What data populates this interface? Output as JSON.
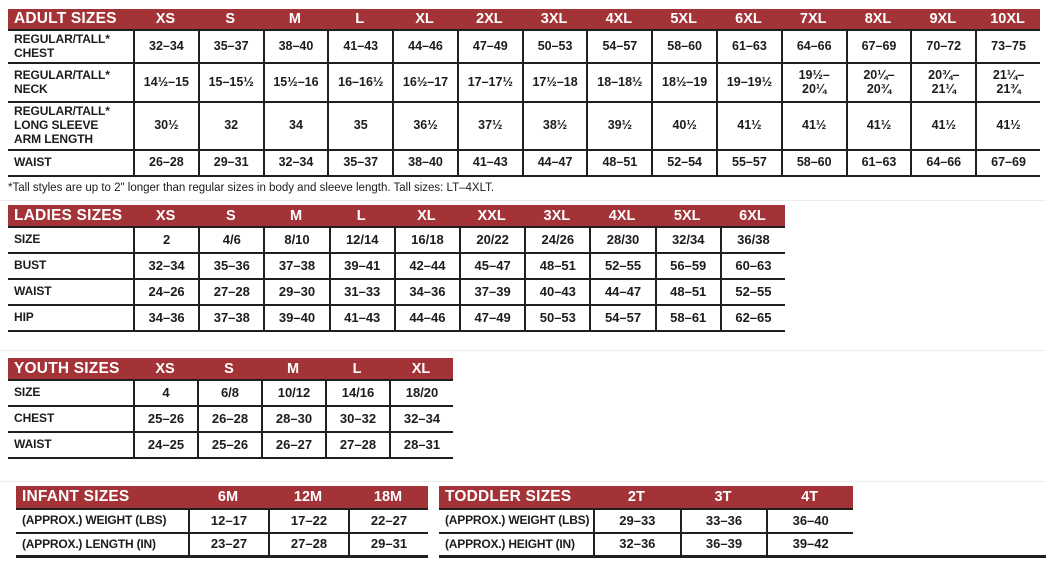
{
  "colors": {
    "header_bg": "#a43338",
    "header_text": "#ffffff",
    "line": "#1f1f1f",
    "text": "#1c1c1c"
  },
  "tables": [
    {
      "id": "adult",
      "title": "ADULT SIZES",
      "columns": [
        "XS",
        "S",
        "M",
        "L",
        "XL",
        "2XL",
        "3XL",
        "4XL",
        "5XL",
        "6XL",
        "7XL",
        "8XL",
        "9XL",
        "10XL"
      ],
      "rows": [
        {
          "label": "REGULAR/TALL*\nCHEST",
          "values": [
            "32–34",
            "35–37",
            "38–40",
            "41–43",
            "44–46",
            "47–49",
            "50–53",
            "54–57",
            "58–60",
            "61–63",
            "64–66",
            "67–69",
            "70–72",
            "73–75"
          ]
        },
        {
          "label": "REGULAR/TALL*\nNECK",
          "values": [
            "14½–15",
            "15–15½",
            "15½–16",
            "16–16½",
            "16½–17",
            "17–17½",
            "17½–18",
            "18–18½",
            "18½–19",
            "19–19½",
            "19½–\n20¼",
            "20¼–\n20¾",
            "20¾–\n21¼",
            "21¼–\n21¾"
          ]
        },
        {
          "label": "REGULAR/TALL*\nLONG SLEEVE\nARM LENGTH",
          "values": [
            "30½",
            "32",
            "34",
            "35",
            "36½",
            "37½",
            "38½",
            "39½",
            "40½",
            "41½",
            "41½",
            "41½",
            "41½",
            "41½"
          ]
        },
        {
          "label": "WAIST",
          "values": [
            "26–28",
            "29–31",
            "32–34",
            "35–37",
            "38–40",
            "41–43",
            "44–47",
            "48–51",
            "52–54",
            "55–57",
            "58–60",
            "61–63",
            "64–66",
            "67–69"
          ]
        }
      ],
      "footnote": "*Tall styles are up to 2\" longer than regular sizes in body and sleeve length. Tall sizes: LT–4XLT."
    },
    {
      "id": "ladies",
      "title": "LADIES SIZES",
      "columns": [
        "XS",
        "S",
        "M",
        "L",
        "XL",
        "XXL",
        "3XL",
        "4XL",
        "5XL",
        "6XL"
      ],
      "rows": [
        {
          "label": "SIZE",
          "values": [
            "2",
            "4/6",
            "8/10",
            "12/14",
            "16/18",
            "20/22",
            "24/26",
            "28/30",
            "32/34",
            "36/38"
          ]
        },
        {
          "label": "BUST",
          "values": [
            "32–34",
            "35–36",
            "37–38",
            "39–41",
            "42–44",
            "45–47",
            "48–51",
            "52–55",
            "56–59",
            "60–63"
          ]
        },
        {
          "label": "WAIST",
          "values": [
            "24–26",
            "27–28",
            "29–30",
            "31–33",
            "34–36",
            "37–39",
            "40–43",
            "44–47",
            "48–51",
            "52–55"
          ]
        },
        {
          "label": "HIP",
          "values": [
            "34–36",
            "37–38",
            "39–40",
            "41–43",
            "44–46",
            "47–49",
            "50–53",
            "54–57",
            "58–61",
            "62–65"
          ]
        }
      ]
    },
    {
      "id": "youth",
      "title": "YOUTH SIZES",
      "columns": [
        "XS",
        "S",
        "M",
        "L",
        "XL"
      ],
      "rows": [
        {
          "label": "SIZE",
          "values": [
            "4",
            "6/8",
            "10/12",
            "14/16",
            "18/20"
          ]
        },
        {
          "label": "CHEST",
          "values": [
            "25–26",
            "26–28",
            "28–30",
            "30–32",
            "32–34"
          ]
        },
        {
          "label": "WAIST",
          "values": [
            "24–25",
            "25–26",
            "26–27",
            "27–28",
            "28–31"
          ]
        }
      ]
    },
    {
      "id": "infant",
      "title": "INFANT SIZES",
      "columns": [
        "6M",
        "12M",
        "18M"
      ],
      "rows": [
        {
          "label": "(APPROX.) WEIGHT (LBS)",
          "values": [
            "12–17",
            "17–22",
            "22–27"
          ]
        },
        {
          "label": "(APPROX.) LENGTH (IN)",
          "values": [
            "23–27",
            "27–28",
            "29–31"
          ]
        }
      ]
    },
    {
      "id": "toddler",
      "title": "TODDLER SIZES",
      "columns": [
        "2T",
        "3T",
        "4T"
      ],
      "rows": [
        {
          "label": "(APPROX.) WEIGHT (LBS)",
          "values": [
            "29–33",
            "33–36",
            "36–40"
          ]
        },
        {
          "label": "(APPROX.) HEIGHT (IN)",
          "values": [
            "32–36",
            "36–39",
            "39–42"
          ]
        }
      ]
    }
  ]
}
